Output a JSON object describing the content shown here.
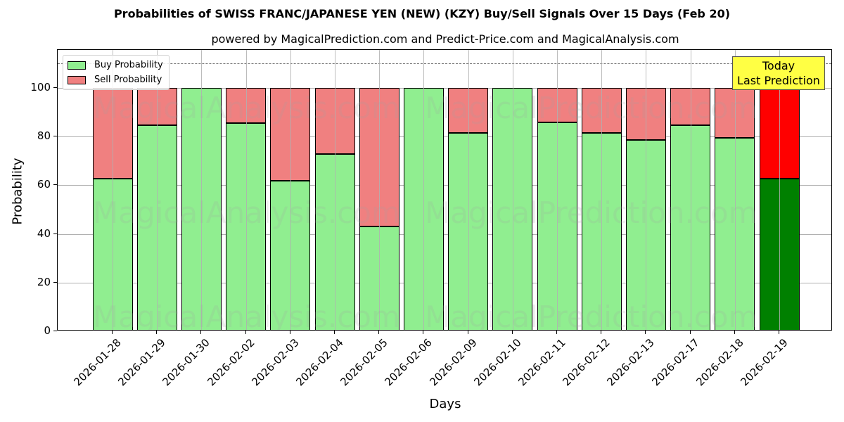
{
  "chart_data": {
    "type": "bar",
    "stacked": true,
    "title": "Probabilities of SWISS FRANC/JAPANESE YEN (NEW) (KZY) Buy/Sell Signals Over 15 Days (Feb 20)",
    "subtitle": "powered by MagicalPrediction.com and Predict-Price.com and MagicalAnalysis.com",
    "xlabel": "Days",
    "ylabel": "Probability",
    "ylim": [
      0,
      115
    ],
    "yticks": [
      0,
      20,
      40,
      60,
      80,
      100
    ],
    "grid": true,
    "legend_position": "upper left",
    "reference_line": {
      "y": 110,
      "style": "dashed",
      "color": "#777777"
    },
    "categories": [
      "2026-01-28",
      "2026-01-29",
      "2026-01-30",
      "2026-02-02",
      "2026-02-03",
      "2026-02-04",
      "2026-02-05",
      "2026-02-06",
      "2026-02-09",
      "2026-02-10",
      "2026-02-11",
      "2026-02-12",
      "2026-02-13",
      "2026-02-17",
      "2026-02-18",
      "2026-02-19"
    ],
    "series": [
      {
        "name": "Buy Probability",
        "color": "#90ee90",
        "values": [
          62.7,
          84.7,
          100,
          85.5,
          61.8,
          72.8,
          43.1,
          100,
          81.5,
          100,
          85.8,
          81.5,
          78.6,
          84.7,
          79.5,
          62.7
        ]
      },
      {
        "name": "Sell Probability",
        "color": "#f08080",
        "values": [
          37.3,
          15.3,
          0,
          14.5,
          38.2,
          27.2,
          56.9,
          0,
          18.5,
          0,
          14.2,
          18.5,
          21.4,
          15.3,
          20.5,
          37.3
        ]
      }
    ],
    "highlight": {
      "index": 15,
      "buy_color": "#008000",
      "sell_color": "#ff0000",
      "annotation": "Today\nLast Prediction",
      "annotation_bg": "#ffff44"
    }
  },
  "labels": {
    "title": "Probabilities of SWISS FRANC/JAPANESE YEN (NEW) (KZY) Buy/Sell Signals Over 15 Days (Feb 20)",
    "subtitle": "powered by MagicalPrediction.com and Predict-Price.com and MagicalAnalysis.com",
    "xlabel": "Days",
    "ylabel": "Probability",
    "legend_buy": "Buy Probability",
    "legend_sell": "Sell Probability",
    "today_line1": "Today",
    "today_line2": "Last Prediction"
  },
  "watermarks": [
    "MagicalAnalysis.com",
    "MagicalPrediction.com"
  ]
}
